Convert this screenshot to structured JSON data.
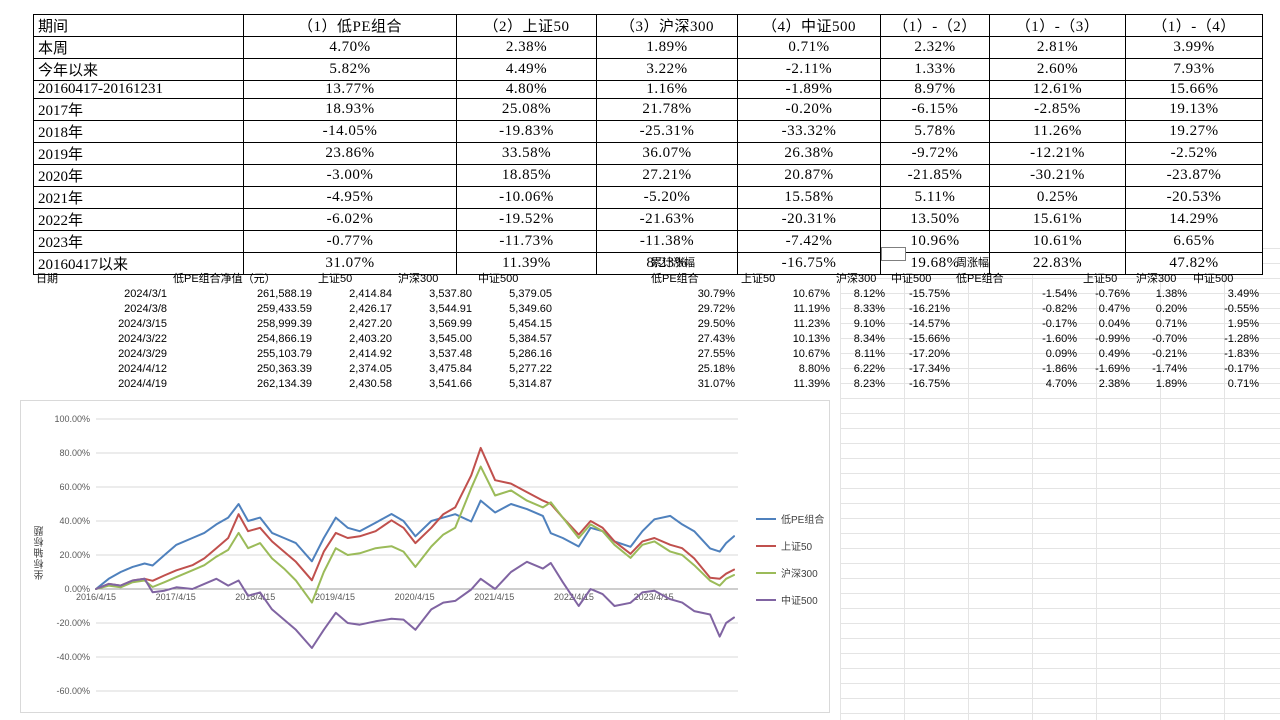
{
  "top_table": {
    "headers": [
      "期间",
      "（1）低PE组合",
      "（2）上证50",
      "（3）沪深300",
      "（4）中证500",
      "（1）-（2）",
      "（1）-（3）",
      "（1）-（4）"
    ],
    "rows": [
      [
        "本周",
        "4.70%",
        "2.38%",
        "1.89%",
        "0.71%",
        "2.32%",
        "2.81%",
        "3.99%"
      ],
      [
        "今年以来",
        "5.82%",
        "4.49%",
        "3.22%",
        "-2.11%",
        "1.33%",
        "2.60%",
        "7.93%"
      ],
      [
        "20160417-20161231",
        "13.77%",
        "4.80%",
        "1.16%",
        "-1.89%",
        "8.97%",
        "12.61%",
        "15.66%"
      ],
      [
        "2017年",
        "18.93%",
        "25.08%",
        "21.78%",
        "-0.20%",
        "-6.15%",
        "-2.85%",
        "19.13%"
      ],
      [
        "2018年",
        "-14.05%",
        "-19.83%",
        "-25.31%",
        "-33.32%",
        "5.78%",
        "11.26%",
        "19.27%"
      ],
      [
        "2019年",
        "23.86%",
        "33.58%",
        "36.07%",
        "26.38%",
        "-9.72%",
        "-12.21%",
        "-2.52%"
      ],
      [
        "2020年",
        "-3.00%",
        "18.85%",
        "27.21%",
        "20.87%",
        "-21.85%",
        "-30.21%",
        "-23.87%"
      ],
      [
        "2021年",
        "-4.95%",
        "-10.06%",
        "-5.20%",
        "15.58%",
        "5.11%",
        "0.25%",
        "-20.53%"
      ],
      [
        "2022年",
        "-6.02%",
        "-19.52%",
        "-21.63%",
        "-20.31%",
        "13.50%",
        "15.61%",
        "14.29%"
      ],
      [
        "2023年",
        "-0.77%",
        "-11.73%",
        "-11.38%",
        "-7.42%",
        "10.96%",
        "10.61%",
        "6.65%"
      ],
      [
        "20160417以来",
        "31.07%",
        "11.39%",
        "8.23%",
        "-16.75%",
        "19.68%",
        "22.83%",
        "47.82%"
      ]
    ]
  },
  "detail_table": {
    "group_headers": [
      {
        "label": "累计涨幅",
        "col": 6
      },
      {
        "label": "周涨幅",
        "col": 10
      }
    ],
    "headers": [
      "日期",
      "低PE组合净值（元）",
      "上证50",
      "沪深300",
      "中证500",
      "低PE组合",
      "上证50",
      "沪深300",
      "中证500",
      "低PE组合",
      "上证50",
      "沪深300",
      "中证500"
    ],
    "rows": [
      [
        "2024/3/1",
        "261,588.19",
        "2,414.84",
        "3,537.80",
        "5,379.05",
        "30.79%",
        "10.67%",
        "8.12%",
        "-15.75%",
        "-1.54%",
        "-0.76%",
        "1.38%",
        "3.49%"
      ],
      [
        "2024/3/8",
        "259,433.59",
        "2,426.17",
        "3,544.91",
        "5,349.60",
        "29.72%",
        "11.19%",
        "8.33%",
        "-16.21%",
        "-0.82%",
        "0.47%",
        "0.20%",
        "-0.55%"
      ],
      [
        "2024/3/15",
        "258,999.39",
        "2,427.20",
        "3,569.99",
        "5,454.15",
        "29.50%",
        "11.23%",
        "9.10%",
        "-14.57%",
        "-0.17%",
        "0.04%",
        "0.71%",
        "1.95%"
      ],
      [
        "2024/3/22",
        "254,866.19",
        "2,403.20",
        "3,545.00",
        "5,384.57",
        "27.43%",
        "10.13%",
        "8.34%",
        "-15.66%",
        "-1.60%",
        "-0.99%",
        "-0.70%",
        "-1.28%"
      ],
      [
        "2024/3/29",
        "255,103.79",
        "2,414.92",
        "3,537.48",
        "5,286.16",
        "27.55%",
        "10.67%",
        "8.11%",
        "-17.20%",
        "0.09%",
        "0.49%",
        "-0.21%",
        "-1.83%"
      ],
      [
        "2024/4/12",
        "250,363.39",
        "2,374.05",
        "3,475.84",
        "5,277.22",
        "25.18%",
        "8.80%",
        "6.22%",
        "-17.34%",
        "-1.86%",
        "-1.69%",
        "-1.74%",
        "-0.17%"
      ],
      [
        "2024/4/19",
        "262,134.39",
        "2,430.58",
        "3,541.66",
        "5,314.87",
        "31.07%",
        "11.39%",
        "8.23%",
        "-16.75%",
        "4.70%",
        "2.38%",
        "1.89%",
        "0.71%"
      ]
    ]
  },
  "chart_data": {
    "type": "line",
    "title": "",
    "ylabel": "坐标轴标题",
    "legend_position": "right",
    "grid": true,
    "ylim": [
      -60,
      100
    ],
    "y_tick_values": [
      100,
      80,
      60,
      40,
      20,
      0,
      -20,
      -40,
      -60
    ],
    "y_tick_labels": [
      "100.00%",
      "80.00%",
      "60.00%",
      "40.00%",
      "20.00%",
      "0.00%",
      "-20.00%",
      "-40.00%",
      "-60.00%"
    ],
    "x_range": [
      2016.29,
      2024.35
    ],
    "x_tick_values": [
      2016.29,
      2017.29,
      2018.29,
      2019.29,
      2020.29,
      2021.29,
      2022.29,
      2023.29
    ],
    "x_tick_labels": [
      "2016/4/15",
      "2017/4/15",
      "2018/4/15",
      "2019/4/15",
      "2020/4/15",
      "2021/4/15",
      "2022/4/15",
      "2023/4/15"
    ],
    "x": [
      2016.29,
      2016.45,
      2016.6,
      2016.75,
      2016.9,
      2017.0,
      2017.15,
      2017.3,
      2017.5,
      2017.65,
      2017.8,
      2017.95,
      2018.08,
      2018.2,
      2018.35,
      2018.5,
      2018.65,
      2018.8,
      2019.0,
      2019.15,
      2019.3,
      2019.45,
      2019.6,
      2019.8,
      2020.0,
      2020.15,
      2020.3,
      2020.5,
      2020.65,
      2020.8,
      2021.0,
      2021.12,
      2021.3,
      2021.5,
      2021.7,
      2021.9,
      2022.0,
      2022.15,
      2022.35,
      2022.5,
      2022.65,
      2022.8,
      2023.0,
      2023.15,
      2023.3,
      2023.5,
      2023.65,
      2023.8,
      2024.0,
      2024.12,
      2024.2,
      2024.3
    ],
    "series": [
      {
        "name": "低PE组合",
        "color": "#4F81BD",
        "values": [
          0,
          6,
          10,
          13,
          15,
          13.8,
          20,
          26,
          30,
          33,
          38,
          42,
          50,
          40,
          42,
          33,
          30,
          27,
          16.3,
          30,
          42,
          36,
          34,
          39,
          44.1,
          40,
          31,
          40,
          42,
          44,
          39.7,
          52,
          45,
          50,
          47,
          43,
          32.8,
          30,
          25,
          36,
          34,
          28,
          24.8,
          34,
          41,
          43,
          38,
          34,
          23.9,
          22,
          27,
          31.07
        ]
      },
      {
        "name": "上证50",
        "color": "#C0504D",
        "values": [
          0,
          3,
          2,
          5,
          6,
          4.8,
          8,
          11,
          14,
          18,
          24,
          30,
          44,
          34,
          36,
          28,
          22,
          16,
          5.1,
          22,
          33,
          30,
          31,
          34,
          40.4,
          36,
          27,
          36,
          44,
          48,
          66.8,
          83,
          64,
          62,
          57,
          52,
          50,
          42,
          32,
          40,
          36,
          28,
          20.7,
          28,
          30,
          26,
          24,
          18,
          6.6,
          6,
          9,
          11.39
        ]
      },
      {
        "name": "沪深300",
        "color": "#9BBB59",
        "values": [
          0,
          2,
          1,
          4,
          5,
          1.2,
          4,
          7,
          11,
          14,
          19,
          23,
          33,
          24,
          27,
          18,
          12,
          5,
          -8,
          10,
          24,
          20,
          21,
          24,
          25.2,
          22,
          13,
          25,
          32,
          36,
          59.3,
          72,
          55,
          58,
          52,
          48,
          51,
          42,
          30,
          38,
          34,
          26,
          18.3,
          26,
          28,
          22,
          20,
          14,
          4.9,
          2,
          6,
          8.23
        ]
      },
      {
        "name": "中证500",
        "color": "#8064A2",
        "values": [
          0,
          3,
          2,
          5,
          6,
          -1.9,
          -1,
          1,
          0,
          3,
          6,
          2,
          5,
          -4,
          -2,
          -12,
          -18,
          -24,
          -34.7,
          -24,
          -14,
          -20,
          -21,
          -19,
          -17.5,
          -18,
          -24,
          -12,
          -8,
          -7,
          -0.3,
          6,
          0,
          10,
          16,
          12,
          15.3,
          4,
          -10,
          0,
          -3,
          -10,
          -8.1,
          -2,
          -1,
          -6,
          -8,
          -13,
          -15,
          -28,
          -20,
          -16.75
        ]
      }
    ]
  }
}
